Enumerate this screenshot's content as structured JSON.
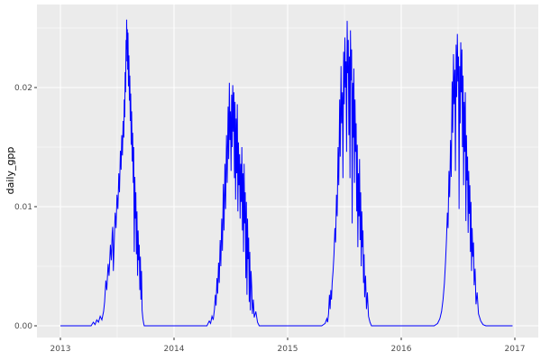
{
  "figure": {
    "y_axis_title": "daily_gpp",
    "x_tick_labels": [
      "2013",
      "2014",
      "2015",
      "2016",
      "2017"
    ],
    "y_tick_labels": [
      "0.00",
      "0.01",
      "0.02"
    ],
    "colors": {
      "line": "#0000FF",
      "panel_bg": "#EBEBEB",
      "grid_major": "#FFFFFF",
      "grid_minor": "#F7F7F7",
      "tick_mark": "#333333",
      "tick_text": "#4D4D4D",
      "outer_bg": "#FFFFFF"
    }
  },
  "chart_data": {
    "type": "line",
    "title": "",
    "xlabel": "",
    "ylabel": "daily_gpp",
    "x_ticks": [
      2013,
      2014,
      2015,
      2016,
      2017
    ],
    "x_minor_ticks": [
      2013.5,
      2014.5,
      2015.5,
      2016.5
    ],
    "y_ticks": [
      0.0,
      0.01,
      0.02
    ],
    "y_minor_ticks": [
      0.005,
      0.015,
      0.025
    ],
    "xlim": [
      2012.79,
      2017.21
    ],
    "ylim": [
      -0.001,
      0.0271
    ],
    "grid": true,
    "legend_position": "none",
    "style": "ggplot2-gray-panel",
    "description": "Daily GPP time series 2013-2017 with four summer growing-season peaks; peak maxima approx 0.0257 (2013), 0.0204 (2014), 0.0256 (2015), 0.0245 (2016); near zero each winter.",
    "series": [
      {
        "name": "daily_gpp",
        "color": "#0000FF",
        "points": [
          [
            2013.0,
            0
          ],
          [
            2013.27,
            0
          ],
          [
            2013.29,
            0.0003
          ],
          [
            2013.305,
            0.0001
          ],
          [
            2013.32,
            0.0005
          ],
          [
            2013.335,
            0.0003
          ],
          [
            2013.35,
            0.0008
          ],
          [
            2013.365,
            0.0005
          ],
          [
            2013.38,
            0.0012
          ],
          [
            2013.389,
            0.002
          ],
          [
            2013.4,
            0.0038
          ],
          [
            2013.408,
            0.003
          ],
          [
            2013.42,
            0.0052
          ],
          [
            2013.428,
            0.0042
          ],
          [
            2013.44,
            0.0068
          ],
          [
            2013.448,
            0.0055
          ],
          [
            2013.456,
            0.0078
          ],
          [
            2013.46,
            0.0083
          ],
          [
            2013.466,
            0.0046
          ],
          [
            2013.474,
            0.0072
          ],
          [
            2013.482,
            0.0095
          ],
          [
            2013.49,
            0.0082
          ],
          [
            2013.498,
            0.011
          ],
          [
            2013.506,
            0.0098
          ],
          [
            2013.514,
            0.0128
          ],
          [
            2013.52,
            0.0112
          ],
          [
            2013.528,
            0.0147
          ],
          [
            2013.534,
            0.0131
          ],
          [
            2013.54,
            0.016
          ],
          [
            2013.546,
            0.0143
          ],
          [
            2013.552,
            0.0172
          ],
          [
            2013.558,
            0.0158
          ],
          [
            2013.562,
            0.019
          ],
          [
            2013.566,
            0.0175
          ],
          [
            2013.57,
            0.0213
          ],
          [
            2013.574,
            0.0196
          ],
          [
            2013.578,
            0.024
          ],
          [
            2013.581,
            0.0222
          ],
          [
            2013.583,
            0.0257
          ],
          [
            2013.586,
            0.0232
          ],
          [
            2013.589,
            0.0249
          ],
          [
            2013.592,
            0.0215
          ],
          [
            2013.595,
            0.0246
          ],
          [
            2013.599,
            0.0201
          ],
          [
            2013.603,
            0.0227
          ],
          [
            2013.607,
            0.0189
          ],
          [
            2013.611,
            0.021
          ],
          [
            2013.615,
            0.0172
          ],
          [
            2013.619,
            0.0195
          ],
          [
            2013.623,
            0.0152
          ],
          [
            2013.627,
            0.018
          ],
          [
            2013.632,
            0.0138
          ],
          [
            2013.636,
            0.0162
          ],
          [
            2013.641,
            0.012
          ],
          [
            2013.645,
            0.015
          ],
          [
            2013.65,
            0.0062
          ],
          [
            2013.655,
            0.0125
          ],
          [
            2013.66,
            0.009
          ],
          [
            2013.664,
            0.0112
          ],
          [
            2013.669,
            0.006
          ],
          [
            2013.674,
            0.0096
          ],
          [
            2013.679,
            0.0042
          ],
          [
            2013.684,
            0.008
          ],
          [
            2013.689,
            0.0055
          ],
          [
            2013.694,
            0.0068
          ],
          [
            2013.699,
            0.003
          ],
          [
            2013.704,
            0.0058
          ],
          [
            2013.709,
            0.0022
          ],
          [
            2013.714,
            0.0046
          ],
          [
            2013.719,
            0.0013
          ],
          [
            2013.726,
            0.0006
          ],
          [
            2013.733,
            0.0002
          ],
          [
            2013.738,
            0
          ],
          [
            2014.29,
            0
          ],
          [
            2014.31,
            0.0004
          ],
          [
            2014.322,
            0.0002
          ],
          [
            2014.334,
            0.0008
          ],
          [
            2014.345,
            0.0005
          ],
          [
            2014.356,
            0.0014
          ],
          [
            2014.364,
            0.0026
          ],
          [
            2014.37,
            0.0017
          ],
          [
            2014.378,
            0.004
          ],
          [
            2014.384,
            0.0027
          ],
          [
            2014.392,
            0.0053
          ],
          [
            2014.398,
            0.0036
          ],
          [
            2014.406,
            0.0072
          ],
          [
            2014.412,
            0.005
          ],
          [
            2014.42,
            0.009
          ],
          [
            2014.426,
            0.0063
          ],
          [
            2014.434,
            0.0119
          ],
          [
            2014.44,
            0.008
          ],
          [
            2014.448,
            0.0136
          ],
          [
            2014.454,
            0.0098
          ],
          [
            2014.462,
            0.016
          ],
          [
            2014.468,
            0.012
          ],
          [
            2014.476,
            0.0184
          ],
          [
            2014.481,
            0.014
          ],
          [
            2014.487,
            0.0204
          ],
          [
            2014.492,
            0.0156
          ],
          [
            2014.497,
            0.018
          ],
          [
            2014.502,
            0.013
          ],
          [
            2014.507,
            0.0194
          ],
          [
            2014.512,
            0.015
          ],
          [
            2014.517,
            0.0202
          ],
          [
            2014.522,
            0.0163
          ],
          [
            2014.527,
            0.0196
          ],
          [
            2014.532,
            0.0124
          ],
          [
            2014.537,
            0.0188
          ],
          [
            2014.542,
            0.0106
          ],
          [
            2014.547,
            0.0174
          ],
          [
            2014.552,
            0.0128
          ],
          [
            2014.557,
            0.0186
          ],
          [
            2014.562,
            0.0096
          ],
          [
            2014.567,
            0.0154
          ],
          [
            2014.572,
            0.0118
          ],
          [
            2014.577,
            0.0144
          ],
          [
            2014.582,
            0.009
          ],
          [
            2014.587,
            0.0136
          ],
          [
            2014.592,
            0.0104
          ],
          [
            2014.597,
            0.015
          ],
          [
            2014.602,
            0.008
          ],
          [
            2014.607,
            0.0128
          ],
          [
            2014.612,
            0.0062
          ],
          [
            2014.617,
            0.0136
          ],
          [
            2014.622,
            0.0086
          ],
          [
            2014.627,
            0.0112
          ],
          [
            2014.632,
            0.004
          ],
          [
            2014.637,
            0.0104
          ],
          [
            2014.642,
            0.0026
          ],
          [
            2014.647,
            0.009
          ],
          [
            2014.652,
            0.0056
          ],
          [
            2014.657,
            0.0074
          ],
          [
            2014.662,
            0.002
          ],
          [
            2014.667,
            0.0062
          ],
          [
            2014.672,
            0.0013
          ],
          [
            2014.678,
            0.0046
          ],
          [
            2014.684,
            0.0032
          ],
          [
            2014.69,
            0.001
          ],
          [
            2014.698,
            0.0022
          ],
          [
            2014.706,
            0.0007
          ],
          [
            2014.72,
            0.0012
          ],
          [
            2014.735,
            0.0003
          ],
          [
            2014.75,
            0
          ],
          [
            2015.3,
            0
          ],
          [
            2015.33,
            0.0002
          ],
          [
            2015.345,
            0.0006
          ],
          [
            2015.352,
            0.0003
          ],
          [
            2015.36,
            0.001
          ],
          [
            2015.368,
            0.0026
          ],
          [
            2015.374,
            0.0014
          ],
          [
            2015.38,
            0.003
          ],
          [
            2015.386,
            0.0022
          ],
          [
            2015.392,
            0.0036
          ],
          [
            2015.4,
            0.0046
          ],
          [
            2015.408,
            0.006
          ],
          [
            2015.416,
            0.0082
          ],
          [
            2015.422,
            0.007
          ],
          [
            2015.43,
            0.011
          ],
          [
            2015.436,
            0.0092
          ],
          [
            2015.444,
            0.015
          ],
          [
            2015.45,
            0.0118
          ],
          [
            2015.458,
            0.019
          ],
          [
            2015.463,
            0.0142
          ],
          [
            2015.47,
            0.0218
          ],
          [
            2015.475,
            0.017
          ],
          [
            2015.482,
            0.0196
          ],
          [
            2015.487,
            0.0124
          ],
          [
            2015.493,
            0.023
          ],
          [
            2015.498,
            0.0186
          ],
          [
            2015.504,
            0.0242
          ],
          [
            2015.509,
            0.02
          ],
          [
            2015.514,
            0.0222
          ],
          [
            2015.519,
            0.0146
          ],
          [
            2015.524,
            0.0256
          ],
          [
            2015.529,
            0.0212
          ],
          [
            2015.534,
            0.024
          ],
          [
            2015.539,
            0.016
          ],
          [
            2015.544,
            0.0226
          ],
          [
            2015.549,
            0.0124
          ],
          [
            2015.553,
            0.0248
          ],
          [
            2015.558,
            0.0206
          ],
          [
            2015.563,
            0.0232
          ],
          [
            2015.568,
            0.0086
          ],
          [
            2015.573,
            0.0204
          ],
          [
            2015.578,
            0.0158
          ],
          [
            2015.583,
            0.0216
          ],
          [
            2015.588,
            0.012
          ],
          [
            2015.593,
            0.019
          ],
          [
            2015.598,
            0.0146
          ],
          [
            2015.603,
            0.017
          ],
          [
            2015.608,
            0.0096
          ],
          [
            2015.613,
            0.0152
          ],
          [
            2015.618,
            0.0066
          ],
          [
            2015.623,
            0.0128
          ],
          [
            2015.628,
            0.0092
          ],
          [
            2015.633,
            0.014
          ],
          [
            2015.638,
            0.0072
          ],
          [
            2015.643,
            0.0112
          ],
          [
            2015.648,
            0.005
          ],
          [
            2015.653,
            0.0096
          ],
          [
            2015.658,
            0.0066
          ],
          [
            2015.663,
            0.008
          ],
          [
            2015.668,
            0.0036
          ],
          [
            2015.673,
            0.006
          ],
          [
            2015.678,
            0.0024
          ],
          [
            2015.686,
            0.0042
          ],
          [
            2015.694,
            0.0014
          ],
          [
            2015.702,
            0.0028
          ],
          [
            2015.712,
            0.0008
          ],
          [
            2015.725,
            0.0003
          ],
          [
            2015.738,
            0
          ],
          [
            2016.29,
            0
          ],
          [
            2016.32,
            0.0002
          ],
          [
            2016.34,
            0.0006
          ],
          [
            2016.355,
            0.0012
          ],
          [
            2016.368,
            0.0022
          ],
          [
            2016.38,
            0.0036
          ],
          [
            2016.39,
            0.0054
          ],
          [
            2016.398,
            0.0072
          ],
          [
            2016.406,
            0.0095
          ],
          [
            2016.412,
            0.0082
          ],
          [
            2016.42,
            0.013
          ],
          [
            2016.426,
            0.0108
          ],
          [
            2016.434,
            0.0156
          ],
          [
            2016.44,
            0.0125
          ],
          [
            2016.448,
            0.0205
          ],
          [
            2016.453,
            0.0162
          ],
          [
            2016.46,
            0.0228
          ],
          [
            2016.465,
            0.0186
          ],
          [
            2016.472,
            0.0215
          ],
          [
            2016.477,
            0.013
          ],
          [
            2016.483,
            0.0236
          ],
          [
            2016.488,
            0.0192
          ],
          [
            2016.494,
            0.0245
          ],
          [
            2016.499,
            0.0205
          ],
          [
            2016.504,
            0.0226
          ],
          [
            2016.509,
            0.0098
          ],
          [
            2016.514,
            0.0218
          ],
          [
            2016.519,
            0.017
          ],
          [
            2016.524,
            0.0238
          ],
          [
            2016.529,
            0.0196
          ],
          [
            2016.534,
            0.0232
          ],
          [
            2016.539,
            0.015
          ],
          [
            2016.544,
            0.021
          ],
          [
            2016.549,
            0.0118
          ],
          [
            2016.554,
            0.0188
          ],
          [
            2016.559,
            0.0146
          ],
          [
            2016.564,
            0.0196
          ],
          [
            2016.569,
            0.0088
          ],
          [
            2016.574,
            0.016
          ],
          [
            2016.579,
            0.0122
          ],
          [
            2016.584,
            0.0142
          ],
          [
            2016.589,
            0.0078
          ],
          [
            2016.594,
            0.013
          ],
          [
            2016.599,
            0.0094
          ],
          [
            2016.604,
            0.0118
          ],
          [
            2016.609,
            0.0062
          ],
          [
            2016.614,
            0.0104
          ],
          [
            2016.619,
            0.0046
          ],
          [
            2016.624,
            0.0082
          ],
          [
            2016.63,
            0.0058
          ],
          [
            2016.636,
            0.007
          ],
          [
            2016.642,
            0.0034
          ],
          [
            2016.65,
            0.0048
          ],
          [
            2016.658,
            0.0018
          ],
          [
            2016.668,
            0.0028
          ],
          [
            2016.68,
            0.001
          ],
          [
            2016.7,
            0.0004
          ],
          [
            2016.72,
            0.0001
          ],
          [
            2016.745,
            0
          ],
          [
            2016.98,
            0
          ]
        ]
      }
    ]
  }
}
